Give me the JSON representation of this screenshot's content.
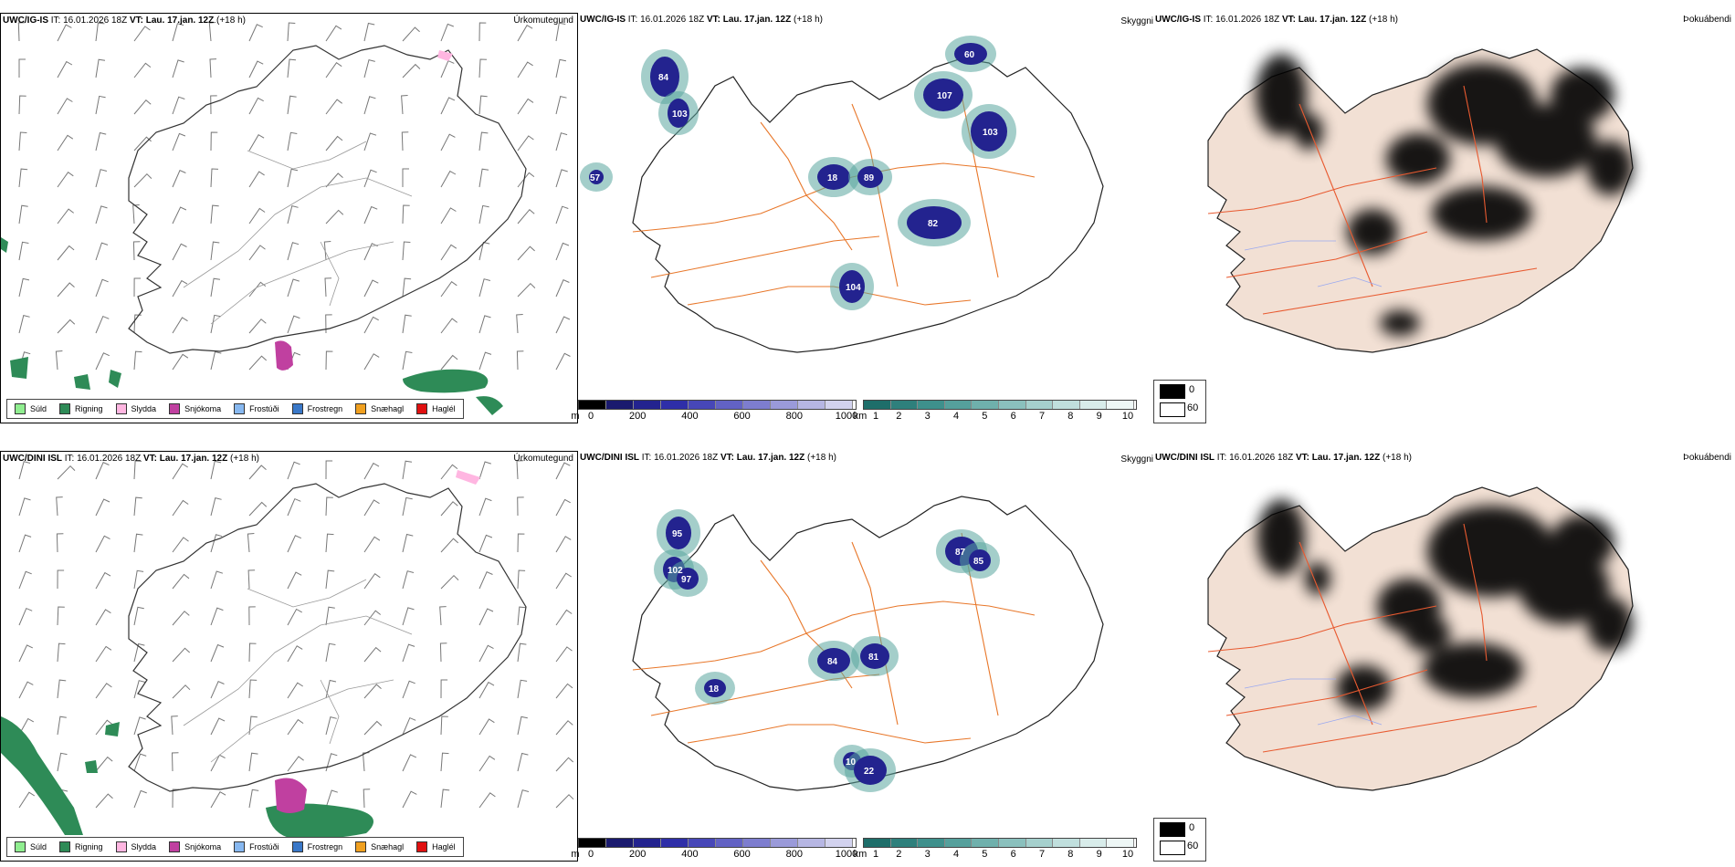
{
  "rows": [
    {
      "model": "UWC/IG-IS",
      "it_label": "IT:",
      "it_value": "16.01.2026 18Z",
      "vt_label": "VT:",
      "vt_value": "Lau. 17.jan. 12Z",
      "lead": "(+18 h)"
    },
    {
      "model": "UWC/DINI ISL",
      "it_label": "IT:",
      "it_value": "16.01.2026 18Z",
      "vt_label": "VT:",
      "vt_value": "Lau. 17.jan. 12Z",
      "lead": "(+18 h)"
    }
  ],
  "panel_titles": {
    "precip_type": "Úrkomutegund",
    "cloud_base": "Skyggni",
    "fog": "Þokuábendi"
  },
  "precip_legend": [
    {
      "label": "Súld",
      "color": "#90ee90"
    },
    {
      "label": "Rigning",
      "color": "#2e8b57"
    },
    {
      "label": "Slydda",
      "color": "#ffb6e1"
    },
    {
      "label": "Snjókoma",
      "color": "#c040a0"
    },
    {
      "label": "Frostúði",
      "color": "#87b8f0"
    },
    {
      "label": "Frostregn",
      "color": "#3a78c8"
    },
    {
      "label": "Snæhagl",
      "color": "#f0a020"
    },
    {
      "label": "Haglél",
      "color": "#e01010"
    }
  ],
  "cloud_m_bar": {
    "unit": "m",
    "ticks": [
      "0",
      "200",
      "400",
      "600",
      "800",
      "1000"
    ],
    "colors": [
      "#000000",
      "#1a1a6e",
      "#23238f",
      "#2e2ea8",
      "#4747b8",
      "#6262c4",
      "#7d7dcf",
      "#9a9ad9",
      "#b6b6e3",
      "#d2d2ee"
    ]
  },
  "vis_km_bar": {
    "unit": "km",
    "ticks": [
      "1",
      "2",
      "3",
      "4",
      "5",
      "6",
      "7",
      "8",
      "9",
      "10"
    ],
    "colors": [
      "#1e6e6a",
      "#2e807c",
      "#3e908c",
      "#55a09c",
      "#6fb0ac",
      "#8ac0bd",
      "#a5d0cd",
      "#c0dfdd",
      "#d8ecea",
      "#eef7f6"
    ]
  },
  "fog_legend": [
    {
      "label": "0",
      "color": "#000000"
    },
    {
      "label": "60",
      "color": "#ffffff"
    }
  ],
  "cloud_labels_top": [
    "84",
    "103",
    "18",
    "89",
    "82",
    "107",
    "103",
    "104",
    "57",
    "60"
  ],
  "cloud_labels_bottom": [
    "95",
    "102",
    "97",
    "87",
    "85",
    "84",
    "81",
    "18",
    "10",
    "22"
  ]
}
